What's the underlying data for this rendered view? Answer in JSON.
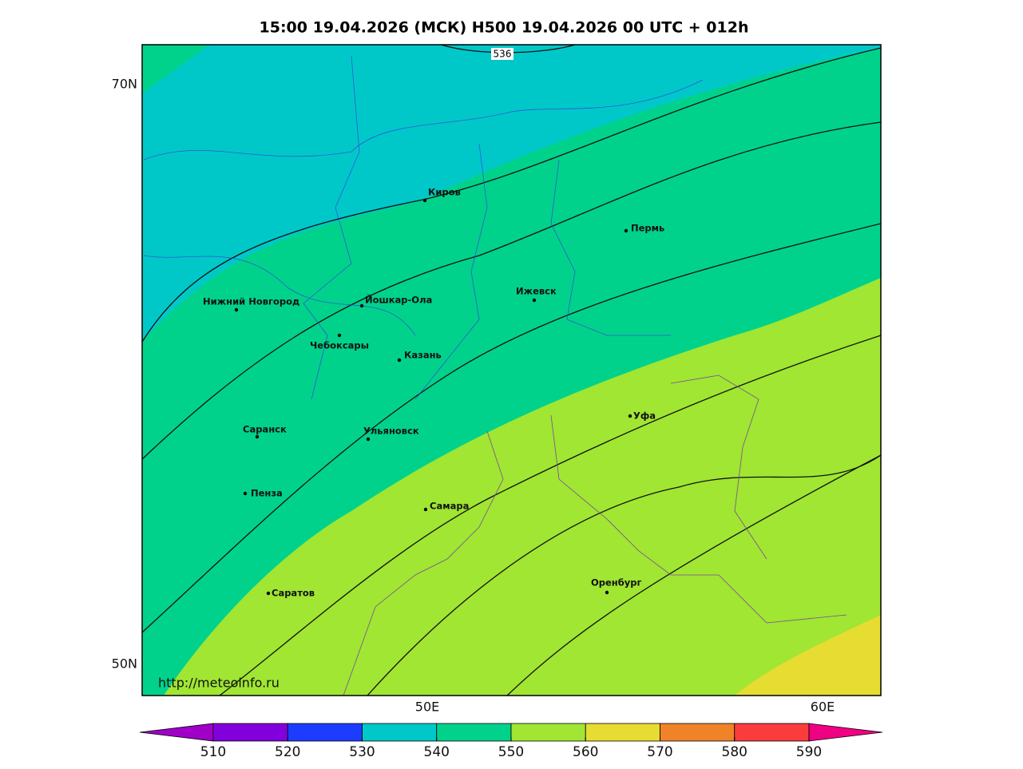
{
  "header": {
    "title": "15:00 19.04.2026 (МСК) H500  19.04.2026 00 UTC + 012h"
  },
  "map": {
    "lat_labels": [
      "70N",
      "50N"
    ],
    "lon_labels": [
      "50E",
      "60E"
    ],
    "contour_label": "536",
    "watermark": "http://meteoinfo.ru",
    "cities": [
      "Киров",
      "Пермь",
      "Нижний Новгород",
      "Йошкар-Ола",
      "Ижевск",
      "Чебоксары",
      "Казань",
      "Уфа",
      "Саранск",
      "Ульяновск",
      "Пенза",
      "Самара",
      "Саратов",
      "Оренбург"
    ]
  },
  "colorbar": {
    "ticks": [
      510,
      520,
      530,
      540,
      550,
      560,
      570,
      580,
      590
    ],
    "colors": [
      "#a000c8",
      "#8200dc",
      "#1e3cff",
      "#00c8c8",
      "#00d28c",
      "#a0e632",
      "#e6dc32",
      "#f08228",
      "#fa3c3c",
      "#f00082"
    ]
  }
}
